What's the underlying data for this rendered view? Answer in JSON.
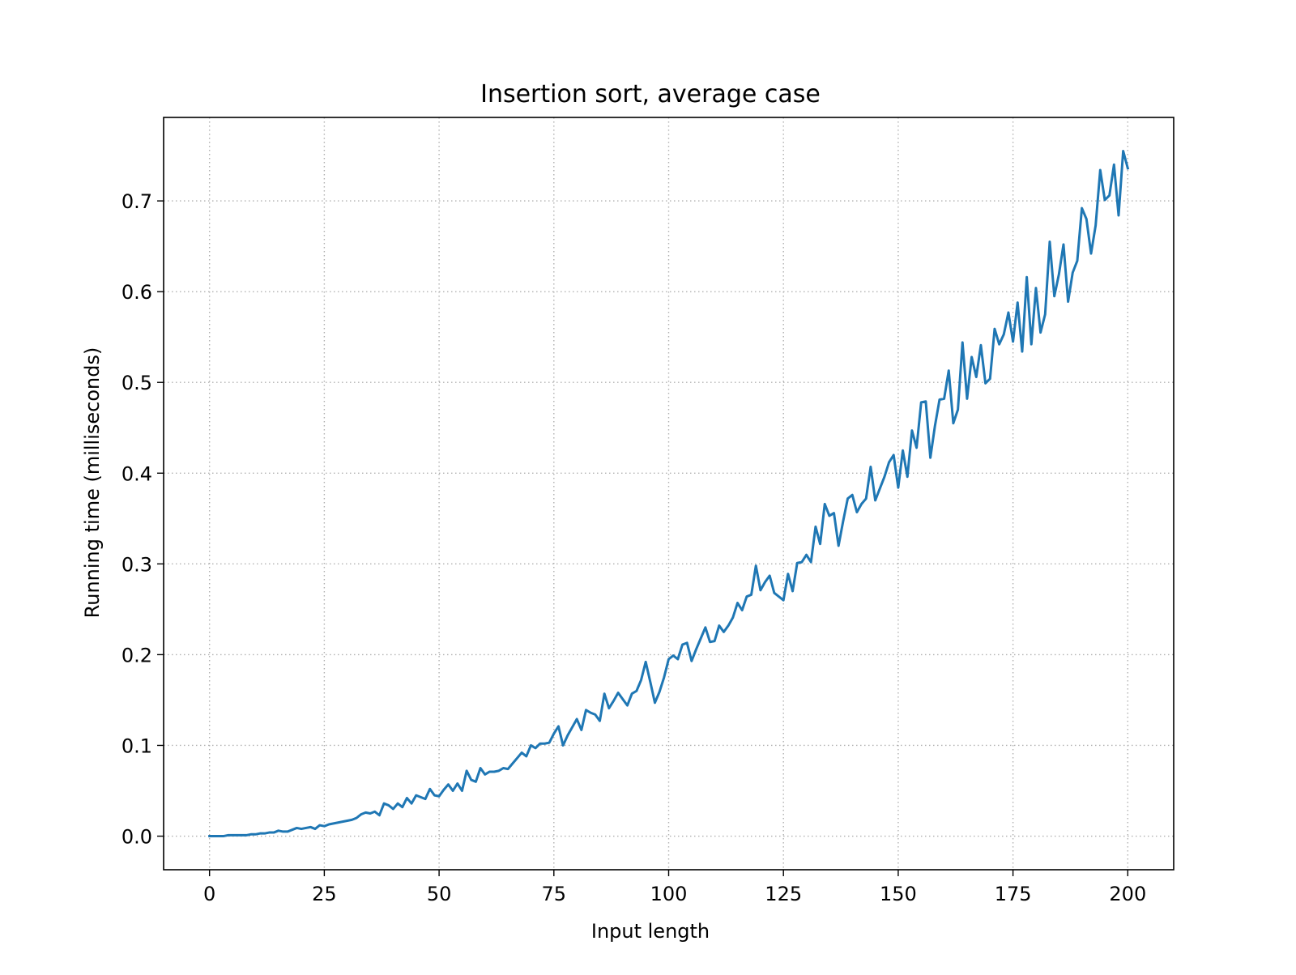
{
  "chart_data": {
    "type": "line",
    "title": "Insertion sort, average case",
    "xlabel": "Input length",
    "ylabel": "Running time (milliseconds)",
    "xlim": [
      -10,
      210
    ],
    "ylim": [
      -0.037,
      0.792
    ],
    "xticks": [
      0,
      25,
      50,
      75,
      100,
      125,
      150,
      175,
      200
    ],
    "xtick_labels": [
      "0",
      "25",
      "50",
      "75",
      "100",
      "125",
      "150",
      "175",
      "200"
    ],
    "yticks": [
      0.0,
      0.1,
      0.2,
      0.3,
      0.4,
      0.5,
      0.6,
      0.7
    ],
    "ytick_labels": [
      "0.0",
      "0.1",
      "0.2",
      "0.3",
      "0.4",
      "0.5",
      "0.6",
      "0.7"
    ],
    "grid": true,
    "grid_style": "dotted",
    "line_color": "#1f77b4",
    "series": [
      {
        "x": [
          0,
          1,
          2,
          3,
          4,
          5,
          6,
          7,
          8,
          9,
          10,
          11,
          12,
          13,
          14,
          15,
          16,
          17,
          18,
          19,
          20,
          21,
          22,
          23,
          24,
          25,
          26,
          27,
          28,
          29,
          30,
          31,
          32,
          33,
          34,
          35,
          36,
          37,
          38,
          39,
          40,
          41,
          42,
          43,
          44,
          45,
          46,
          47,
          48,
          49,
          50,
          51,
          52,
          53,
          54,
          55,
          56,
          57,
          58,
          59,
          60,
          61,
          62,
          63,
          64,
          65,
          66,
          67,
          68,
          69,
          70,
          71,
          72,
          73,
          74,
          75,
          76,
          77,
          78,
          79,
          80,
          81,
          82,
          83,
          84,
          85,
          86,
          87,
          88,
          89,
          90,
          91,
          92,
          93,
          94,
          95,
          96,
          97,
          98,
          99,
          100,
          101,
          102,
          103,
          104,
          105,
          106,
          107,
          108,
          109,
          110,
          111,
          112,
          113,
          114,
          115,
          116,
          117,
          118,
          119,
          120,
          121,
          122,
          123,
          124,
          125,
          126,
          127,
          128,
          129,
          130,
          131,
          132,
          133,
          134,
          135,
          136,
          137,
          138,
          139,
          140,
          141,
          142,
          143,
          144,
          145,
          146,
          147,
          148,
          149,
          150,
          151,
          152,
          153,
          154,
          155,
          156,
          157,
          158,
          159,
          160,
          161,
          162,
          163,
          164,
          165,
          166,
          167,
          168,
          169,
          170,
          171,
          172,
          173,
          174,
          175,
          176,
          177,
          178,
          179,
          180,
          181,
          182,
          183,
          184,
          185,
          186,
          187,
          188,
          189,
          190,
          191,
          192,
          193,
          194,
          195,
          196,
          197,
          198,
          199,
          200
        ],
        "y": [
          0.0,
          0.0,
          0.0,
          0.0,
          0.001,
          0.001,
          0.001,
          0.001,
          0.001,
          0.002,
          0.002,
          0.003,
          0.003,
          0.004,
          0.004,
          0.006,
          0.005,
          0.005,
          0.007,
          0.009,
          0.008,
          0.009,
          0.01,
          0.008,
          0.012,
          0.011,
          0.013,
          0.014,
          0.015,
          0.016,
          0.017,
          0.018,
          0.02,
          0.024,
          0.026,
          0.025,
          0.027,
          0.023,
          0.036,
          0.034,
          0.03,
          0.036,
          0.032,
          0.042,
          0.036,
          0.045,
          0.043,
          0.041,
          0.052,
          0.045,
          0.044,
          0.051,
          0.057,
          0.05,
          0.058,
          0.05,
          0.072,
          0.062,
          0.06,
          0.075,
          0.068,
          0.071,
          0.071,
          0.072,
          0.075,
          0.074,
          0.08,
          0.086,
          0.092,
          0.088,
          0.1,
          0.097,
          0.102,
          0.102,
          0.103,
          0.113,
          0.121,
          0.1,
          0.111,
          0.12,
          0.129,
          0.117,
          0.139,
          0.136,
          0.134,
          0.127,
          0.157,
          0.141,
          0.149,
          0.158,
          0.151,
          0.144,
          0.157,
          0.16,
          0.172,
          0.192,
          0.17,
          0.147,
          0.159,
          0.175,
          0.195,
          0.199,
          0.195,
          0.211,
          0.213,
          0.193,
          0.206,
          0.218,
          0.23,
          0.214,
          0.215,
          0.232,
          0.225,
          0.232,
          0.241,
          0.257,
          0.249,
          0.264,
          0.266,
          0.298,
          0.271,
          0.28,
          0.287,
          0.268,
          0.264,
          0.26,
          0.289,
          0.27,
          0.301,
          0.302,
          0.31,
          0.302,
          0.341,
          0.322,
          0.366,
          0.353,
          0.356,
          0.32,
          0.347,
          0.372,
          0.376,
          0.357,
          0.366,
          0.372,
          0.407,
          0.37,
          0.383,
          0.396,
          0.412,
          0.42,
          0.384,
          0.425,
          0.396,
          0.447,
          0.428,
          0.478,
          0.479,
          0.417,
          0.452,
          0.481,
          0.482,
          0.513,
          0.455,
          0.47,
          0.544,
          0.482,
          0.528,
          0.506,
          0.541,
          0.499,
          0.504,
          0.559,
          0.542,
          0.553,
          0.577,
          0.545,
          0.588,
          0.534,
          0.616,
          0.542,
          0.604,
          0.555,
          0.575,
          0.655,
          0.595,
          0.619,
          0.652,
          0.589,
          0.621,
          0.634,
          0.692,
          0.68,
          0.642,
          0.673,
          0.734,
          0.701,
          0.706,
          0.74,
          0.684,
          0.755,
          0.736
        ]
      }
    ]
  }
}
